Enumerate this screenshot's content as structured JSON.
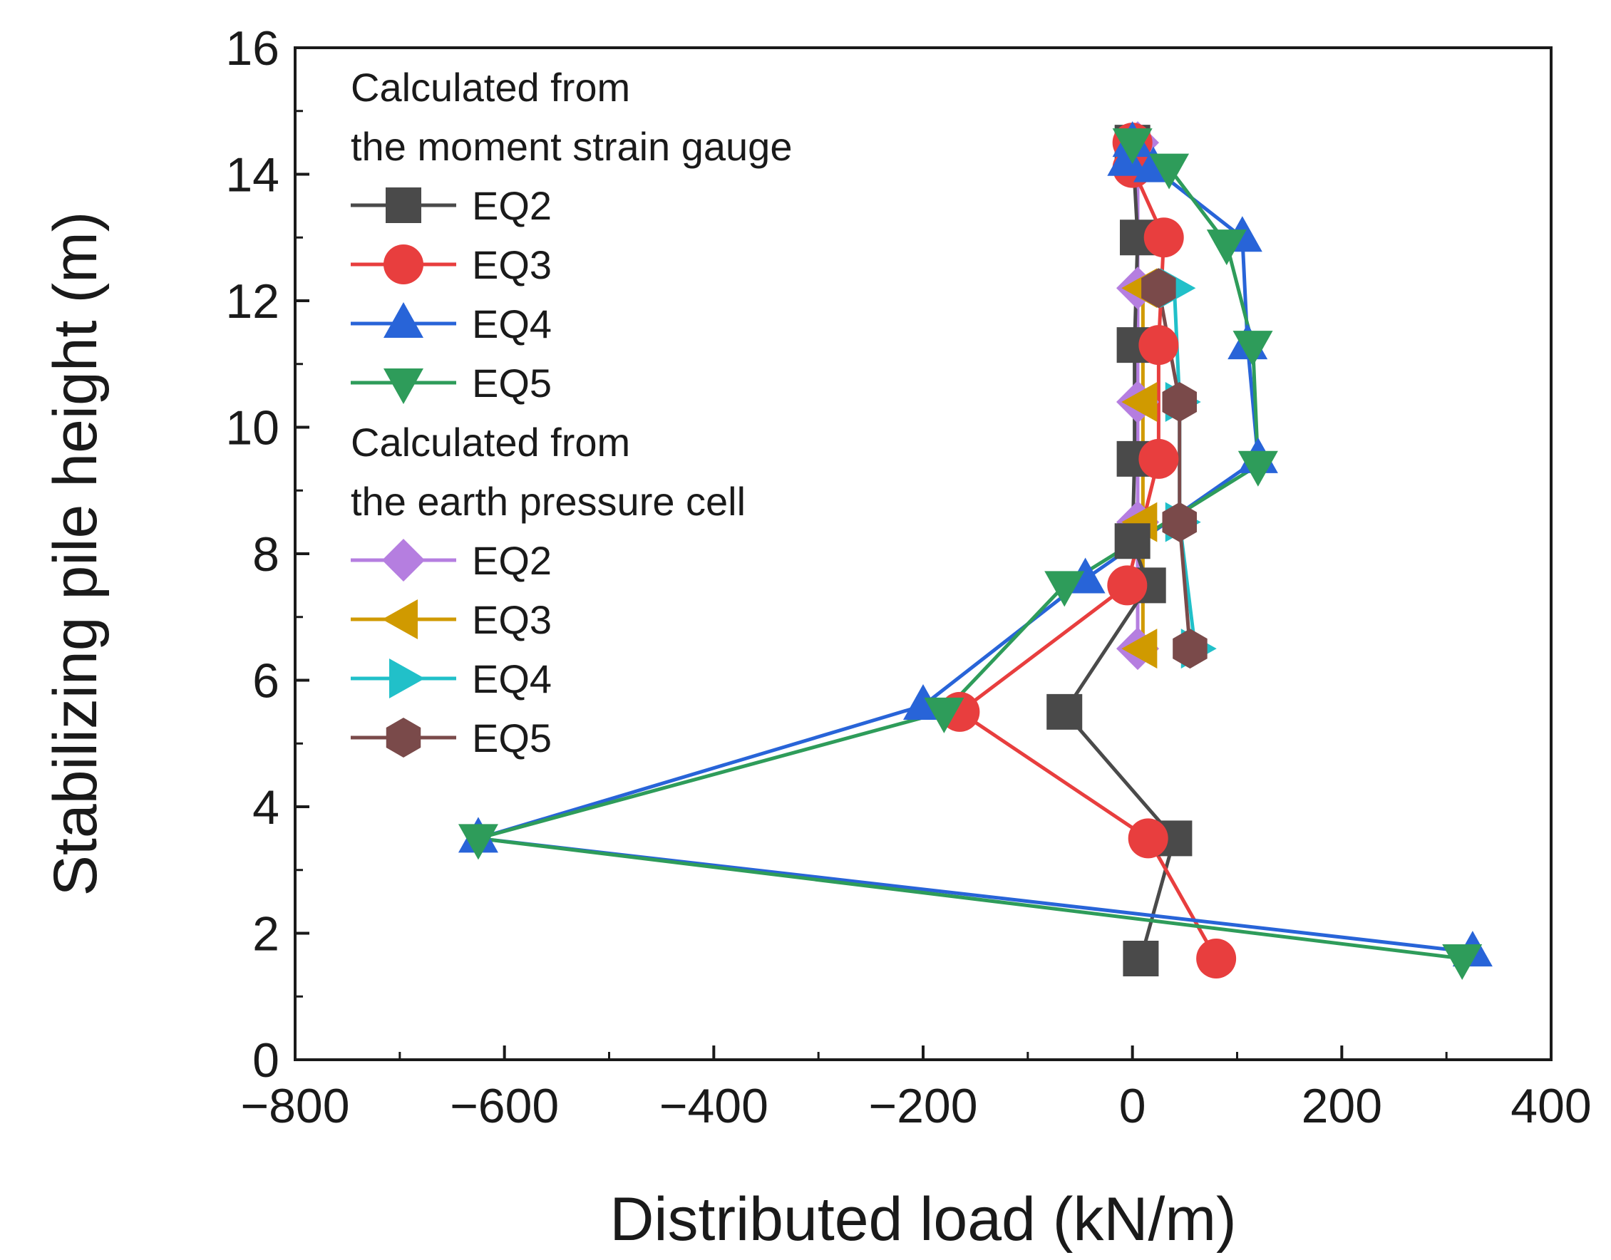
{
  "chart_data": {
    "type": "line",
    "xlabel": "Distributed load (kN/m)",
    "ylabel": "Stabilizing pile height (m)",
    "xlim": [
      -800,
      400
    ],
    "ylim": [
      0,
      16
    ],
    "xticks": [
      -800,
      -600,
      -400,
      -200,
      0,
      200,
      400
    ],
    "xtick_labels": [
      "−800",
      "−600",
      "−400",
      "−200",
      "0",
      "200",
      "400"
    ],
    "yticks": [
      0,
      2,
      4,
      6,
      8,
      10,
      12,
      14,
      16
    ],
    "ytick_labels": [
      "0",
      "2",
      "4",
      "6",
      "8",
      "10",
      "12",
      "14",
      "16"
    ],
    "legend_position": "top-left",
    "legend_groups": [
      {
        "title_lines": [
          "Calculated from",
          "the moment strain gauge"
        ],
        "series": [
          "EQ2",
          "EQ3",
          "EQ4",
          "EQ5"
        ]
      },
      {
        "title_lines": [
          "Calculated from",
          "the earth pressure cell"
        ],
        "series": [
          "EQ2",
          "EQ3",
          "EQ4",
          "EQ5"
        ]
      }
    ],
    "series": [
      {
        "name": "EQ2",
        "group": "moment strain gauge",
        "marker": "square",
        "color": "#4a4a4a",
        "x": [
          0,
          5,
          2,
          2,
          0,
          15,
          -65,
          40,
          8
        ],
        "y": [
          14.5,
          13.0,
          11.3,
          9.5,
          8.2,
          7.5,
          5.5,
          3.5,
          1.6
        ]
      },
      {
        "name": "EQ3",
        "group": "moment strain gauge",
        "marker": "circle",
        "color": "#e83e3e",
        "x": [
          0,
          0,
          30,
          25,
          25,
          -5,
          -165,
          15,
          80
        ],
        "y": [
          14.5,
          14.1,
          13.0,
          11.3,
          9.5,
          7.5,
          5.5,
          3.5,
          1.6
        ]
      },
      {
        "name": "EQ4",
        "group": "moment strain gauge",
        "marker": "triangle-up",
        "color": "#2864d8",
        "x": [
          0,
          -5,
          20,
          105,
          110,
          120,
          -45,
          -200,
          -625,
          325
        ],
        "y": [
          14.5,
          14.2,
          14.1,
          13.0,
          11.3,
          9.5,
          7.6,
          5.6,
          3.5,
          1.7
        ]
      },
      {
        "name": "EQ5",
        "group": "moment strain gauge",
        "marker": "triangle-down",
        "color": "#2e9c5a",
        "x": [
          0,
          35,
          90,
          115,
          120,
          -65,
          -180,
          -625,
          315
        ],
        "y": [
          14.5,
          14.1,
          12.9,
          11.3,
          9.4,
          7.5,
          5.5,
          3.5,
          1.6
        ]
      },
      {
        "name": "EQ2",
        "group": "earth pressure cell",
        "marker": "diamond",
        "color": "#b57ee0",
        "x": [
          5,
          5,
          5,
          5,
          5
        ],
        "y": [
          12.2,
          10.4,
          8.5,
          6.5,
          14.5
        ]
      },
      {
        "name": "EQ3",
        "group": "earth pressure cell",
        "marker": "triangle-left",
        "color": "#d09a00",
        "x": [
          10,
          10,
          10,
          10
        ],
        "y": [
          12.2,
          10.4,
          8.5,
          6.5
        ]
      },
      {
        "name": "EQ4",
        "group": "earth pressure cell",
        "marker": "triangle-right",
        "color": "#21c0c9",
        "x": [
          40,
          45,
          45,
          60
        ],
        "y": [
          12.2,
          10.4,
          8.5,
          6.5
        ]
      },
      {
        "name": "EQ5",
        "group": "earth pressure cell",
        "marker": "hexagon",
        "color": "#7a4a4a",
        "x": [
          25,
          45,
          45,
          55
        ],
        "y": [
          12.2,
          10.4,
          8.5,
          6.5
        ]
      }
    ]
  }
}
